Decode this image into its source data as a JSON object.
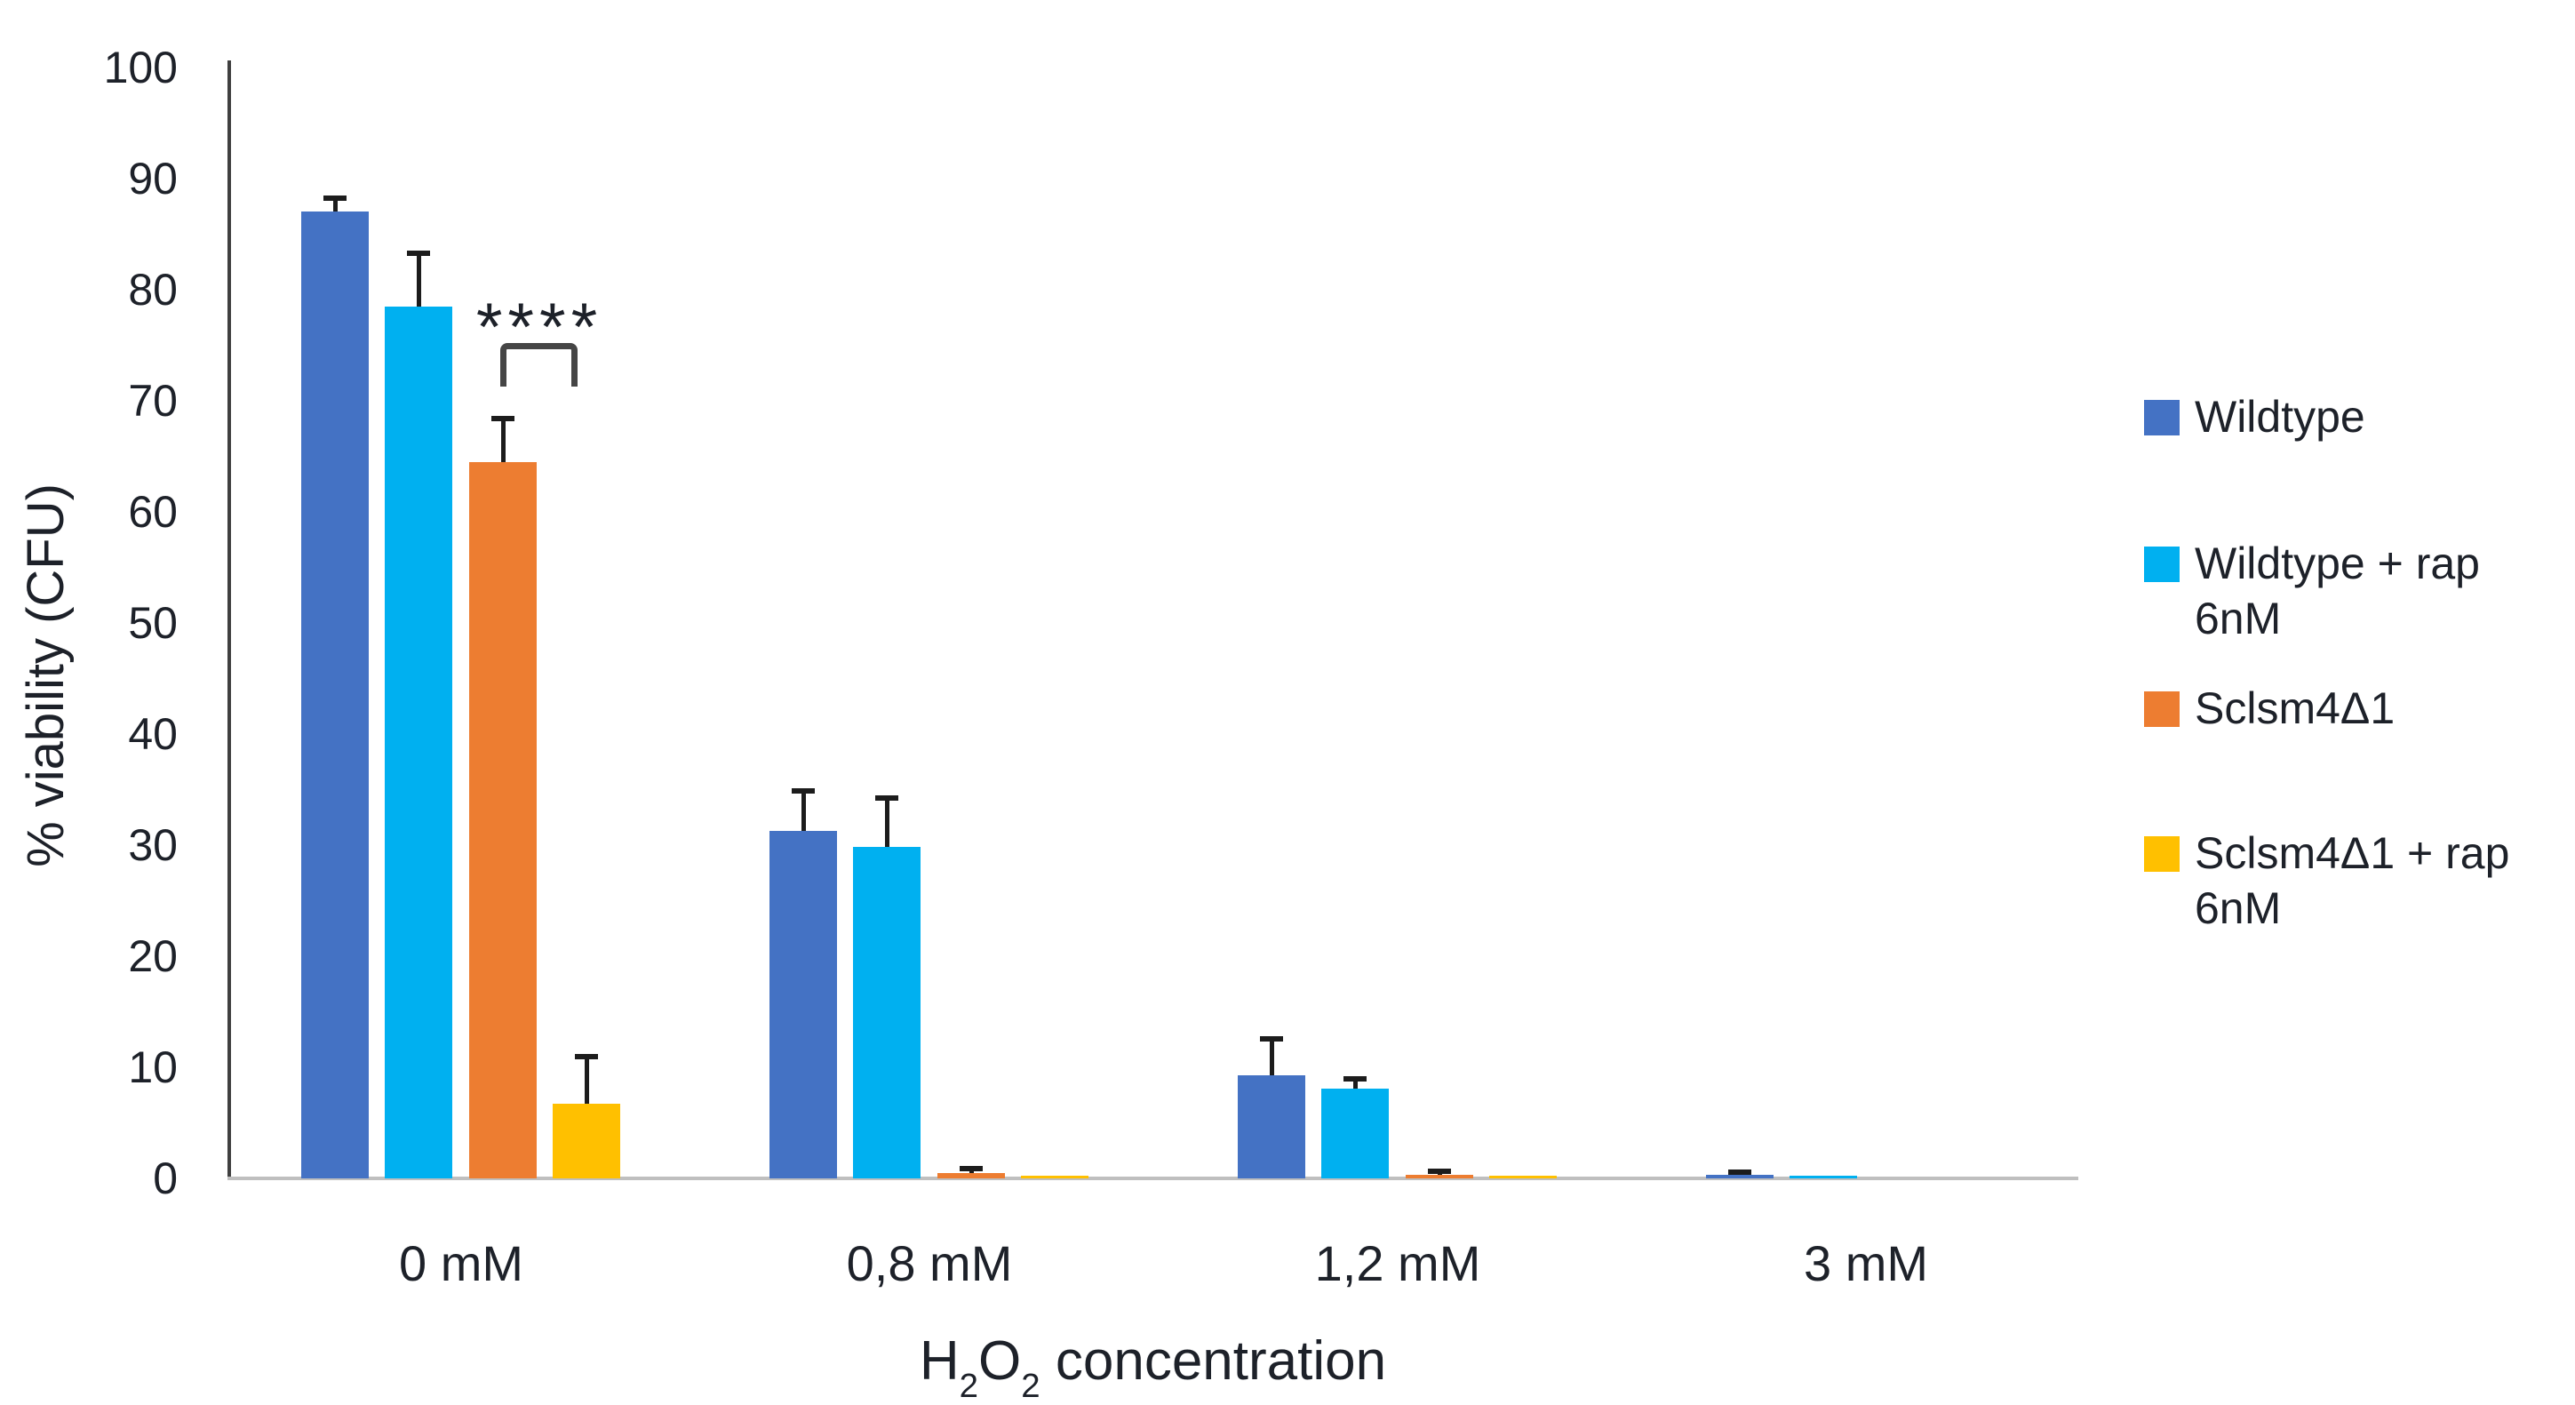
{
  "chart_data": {
    "type": "bar",
    "title": "",
    "ylabel": "% viability (CFU)",
    "xlabel_segments": [
      {
        "text": "H"
      },
      {
        "text": "2",
        "sub": true
      },
      {
        "text": "O"
      },
      {
        "text": "2",
        "sub": true
      },
      {
        "text": " concentration"
      }
    ],
    "categories": [
      "0 mM",
      "0,8 mM",
      "1,2 mM",
      "3 mM"
    ],
    "series": [
      {
        "name": "Wildtype",
        "legend_lines": [
          "Wildtype"
        ],
        "color": "#4472C4",
        "values": [
          87,
          31.3,
          9.3,
          0.3
        ],
        "errors": [
          1.2,
          3.6,
          3.3,
          0.25
        ]
      },
      {
        "name": "Wildtype + rap 6nM",
        "legend_lines": [
          "Wildtype + rap",
          "6nM"
        ],
        "color": "#00B0F0",
        "values": [
          78.5,
          29.8,
          8.1,
          0.2
        ],
        "errors": [
          4.8,
          4.4,
          0.9,
          0
        ]
      },
      {
        "name": "Sclsm4Δ1",
        "legend_lines": [
          "Sclsm4Δ1"
        ],
        "color": "#ED7D31",
        "values": [
          64.5,
          0.5,
          0.35,
          0
        ],
        "errors": [
          3.9,
          0.4,
          0.35,
          0
        ]
      },
      {
        "name": "Sclsm4Δ1 + rap 6nM",
        "legend_lines": [
          "Sclsm4Δ1 + rap",
          "6nM"
        ],
        "color": "#FFC000",
        "values": [
          6.7,
          0.25,
          0.2,
          0
        ],
        "errors": [
          4.2,
          0,
          0,
          0
        ]
      }
    ],
    "ylim": [
      0,
      100
    ],
    "yticks": [
      0,
      10,
      20,
      30,
      40,
      50,
      60,
      70,
      80,
      90,
      100
    ],
    "grid": false,
    "legend_position": "right",
    "annotation": {
      "text": "****"
    }
  },
  "colors": {
    "background": "#ffffff",
    "axis_line": "#404040",
    "baseline": "#bfbfbf",
    "error_bar": "#1c1c1c",
    "text": "#1d2129"
  }
}
